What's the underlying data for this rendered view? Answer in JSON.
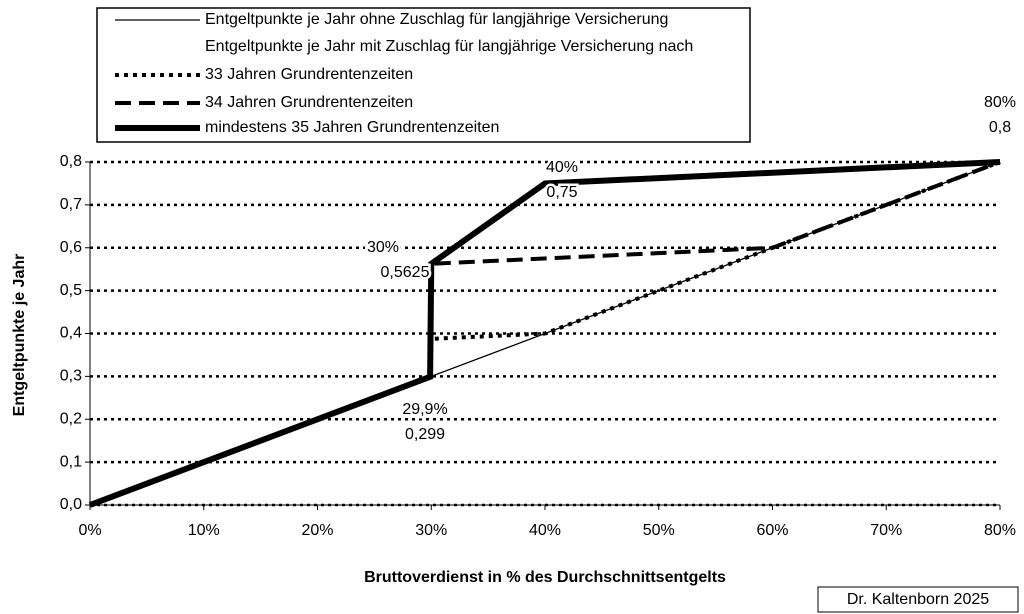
{
  "chart_data": {
    "type": "line",
    "xlabel": "Bruttoverdienst in % des Durchschnittsentgelts",
    "ylabel": "Entgeltpunkte je Jahr",
    "legend_title": "Entgeltpunkte je Jahr mit Zuschlag für langjährige Versicherung nach",
    "credit": "Dr. Kaltenborn 2025",
    "xlim": [
      0,
      80
    ],
    "ylim": [
      0,
      0.8
    ],
    "xticks": [
      {
        "value": 0,
        "label": "0%"
      },
      {
        "value": 10,
        "label": "10%"
      },
      {
        "value": 20,
        "label": "20%"
      },
      {
        "value": 30,
        "label": "30%"
      },
      {
        "value": 40,
        "label": "40%"
      },
      {
        "value": 50,
        "label": "50%"
      },
      {
        "value": 60,
        "label": "60%"
      },
      {
        "value": 70,
        "label": "70%"
      },
      {
        "value": 80,
        "label": "80%"
      }
    ],
    "yticks": [
      {
        "value": 0,
        "label": "0,0"
      },
      {
        "value": 0.1,
        "label": "0,1"
      },
      {
        "value": 0.2,
        "label": "0,2"
      },
      {
        "value": 0.3,
        "label": "0,3"
      },
      {
        "value": 0.4,
        "label": "0,4"
      },
      {
        "value": 0.5,
        "label": "0,5"
      },
      {
        "value": 0.6,
        "label": "0,6"
      },
      {
        "value": 0.7,
        "label": "0,7"
      },
      {
        "value": 0.8,
        "label": "0,8"
      }
    ],
    "grid": true,
    "series": [
      {
        "name": "Entgeltpunkte je Jahr ohne Zuschlag für langjährige Versicherung",
        "color": "#000000",
        "style": "thin",
        "x": [
          0,
          80
        ],
        "values": [
          0,
          0.8
        ]
      },
      {
        "name": "33 Jahren Grundrentenzeiten",
        "color": "#000000",
        "style": "dotted",
        "x": [
          0,
          29.9,
          30,
          40,
          80
        ],
        "values": [
          0,
          0.299,
          0.3875,
          0.4,
          0.8
        ]
      },
      {
        "name": "34 Jahren Grundrentenzeiten",
        "color": "#000000",
        "style": "dashed",
        "x": [
          0,
          29.9,
          30,
          60,
          80
        ],
        "values": [
          0,
          0.299,
          0.5625,
          0.6,
          0.8
        ]
      },
      {
        "name": "mindestens 35 Jahren Grundrentenzeiten",
        "color": "#000000",
        "style": "thick",
        "x": [
          0,
          29.9,
          30,
          40,
          80
        ],
        "values": [
          0,
          0.299,
          0.5625,
          0.75,
          0.8
        ]
      }
    ],
    "annotations": [
      "80%",
      "0,8",
      "40%",
      "0,75",
      "30%",
      "0,5625",
      "29,9%",
      "0,299"
    ]
  }
}
